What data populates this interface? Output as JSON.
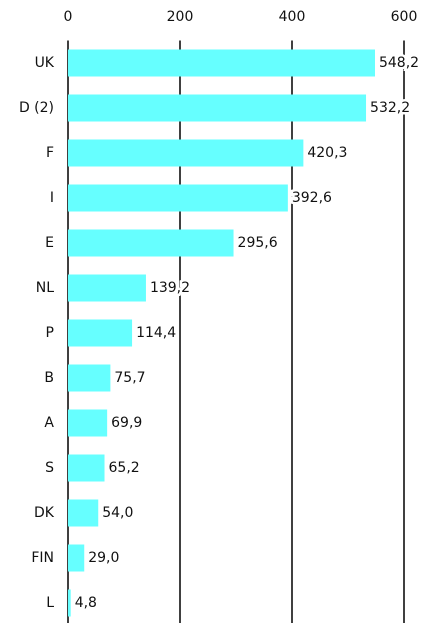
{
  "chart_data": {
    "type": "bar",
    "orientation": "horizontal",
    "categories": [
      "UK",
      "D (2)",
      "F",
      "I",
      "E",
      "NL",
      "P",
      "B",
      "A",
      "S",
      "DK",
      "FIN",
      "L"
    ],
    "values": [
      548.2,
      532.2,
      420.3,
      392.6,
      295.6,
      139.2,
      114.4,
      75.7,
      69.9,
      65.2,
      54.0,
      29.0,
      4.8
    ],
    "value_labels": [
      "548,2",
      "532,2",
      "420,3",
      "392,6",
      "295,6",
      "139,2",
      "114,4",
      "75,7",
      "69,9",
      "65,2",
      "54,0",
      "29,0",
      "4,8"
    ],
    "color": "#66ffff",
    "xlim": [
      0,
      600
    ],
    "xticks": [
      0,
      200,
      400,
      600
    ],
    "grid": true
  }
}
